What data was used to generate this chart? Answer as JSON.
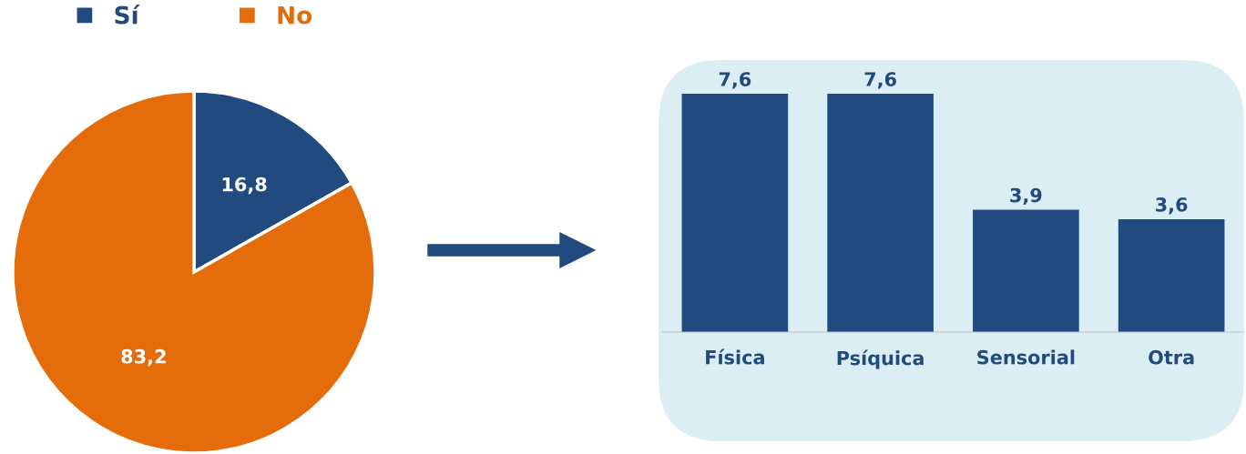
{
  "chart_data": [
    {
      "type": "pie",
      "categories": [
        "Sí",
        "No"
      ],
      "values": [
        16.8,
        83.2
      ],
      "colors": [
        "#214a7e",
        "#e46c0a"
      ],
      "value_labels": [
        "16,8",
        "83,2"
      ],
      "legend": "top"
    },
    {
      "type": "bar",
      "categories": [
        "Física",
        "Psíquica",
        "Sensorial",
        "Otra"
      ],
      "values": [
        7.6,
        7.6,
        3.9,
        3.6
      ],
      "color": "#214a7e",
      "value_labels": [
        "7,6",
        "7,6",
        "3,9",
        "3,6"
      ],
      "grid": false
    }
  ]
}
